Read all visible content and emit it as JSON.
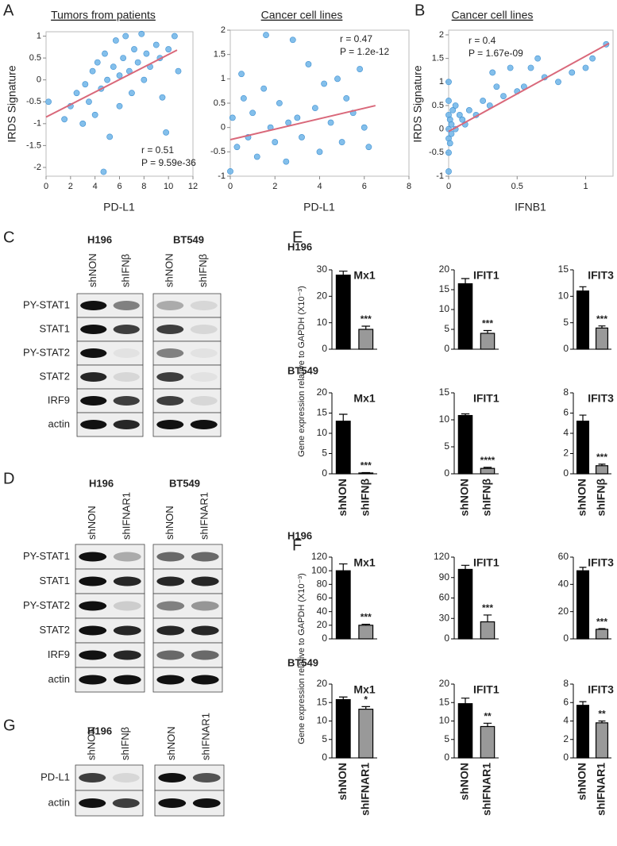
{
  "panel_letters": [
    "A",
    "B",
    "C",
    "D",
    "E",
    "F",
    "G"
  ],
  "bar_rows": [
    "H196",
    "BT549",
    "H196",
    "BT549"
  ],
  "bar_ylabel": "Gene expression relative to GAPDH (X10⁻³)",
  "blots": [
    {
      "groups": [
        {
          "cell_line": "H196",
          "lanes": [
            "shNON",
            "shIFNβ"
          ]
        },
        {
          "cell_line": "BT549",
          "lanes": [
            "shNON",
            "shIFNβ"
          ]
        }
      ],
      "proteins": [
        "PY-STAT1",
        "STAT1",
        "PY-STAT2",
        "STAT2",
        "IRF9",
        "actin"
      ]
    },
    {
      "groups": [
        {
          "cell_line": "H196",
          "lanes": [
            "shNON",
            "shIFNAR1"
          ]
        },
        {
          "cell_line": "BT549",
          "lanes": [
            "shNON",
            "shIFNAR1"
          ]
        }
      ],
      "proteins": [
        "PY-STAT1",
        "STAT1",
        "PY-STAT2",
        "STAT2",
        "IRF9",
        "actin"
      ]
    },
    {
      "groups": [
        {
          "cell_line": "H196",
          "lanes": [
            "shNON",
            "shIFNβ"
          ]
        },
        {
          "lanes": [
            "shNON",
            "shIFNAR1"
          ]
        }
      ],
      "proteins": [
        "PD-L1",
        "actin"
      ]
    }
  ],
  "chart_data": [
    {
      "type": "scatter",
      "title": "Tumors from patients",
      "xlabel": "PD-L1",
      "ylabel": "IRDS Signature",
      "annotations": [
        "r = 0.51",
        "P = 9.59e-36"
      ],
      "color": "#6db4e8",
      "x": [
        0.2,
        1.5,
        2,
        2.5,
        3,
        3.2,
        3.5,
        3.8,
        4,
        4.2,
        4.5,
        4.7,
        4.8,
        5,
        5.2,
        5.5,
        5.7,
        6,
        6,
        6.3,
        6.5,
        6.8,
        7,
        7.2,
        7.5,
        7.8,
        8,
        8.2,
        8.5,
        9,
        9.3,
        9.5,
        10,
        10.5,
        10.8,
        9.8
      ],
      "values": [
        -0.5,
        -0.9,
        -0.6,
        -0.3,
        -1.0,
        -0.1,
        -0.5,
        0.2,
        -0.8,
        0.4,
        -0.2,
        -2.1,
        0.6,
        0.0,
        -1.3,
        0.3,
        0.9,
        0.1,
        -0.6,
        0.5,
        1.0,
        0.2,
        -0.3,
        0.7,
        0.4,
        1.05,
        0.0,
        0.6,
        0.3,
        0.8,
        0.5,
        -0.4,
        0.7,
        1.0,
        0.2,
        -1.2
      ],
      "trend": {
        "color": "#d9687a",
        "x": [
          0,
          10.7
        ],
        "values": [
          -0.85,
          0.68
        ]
      },
      "xlim": [
        0,
        12
      ],
      "xticks": [
        0,
        2,
        4,
        6,
        8,
        10,
        12
      ],
      "ylim": [
        -2.2,
        1.1
      ],
      "yticks": [
        -2,
        -1.5,
        -1,
        -0.5,
        0,
        0.5,
        1
      ]
    },
    {
      "type": "scatter",
      "title": "Cancer cell lines",
      "xlabel": "PD-L1",
      "annotations": [
        "r = 0.47",
        "P = 1.2e-12"
      ],
      "color": "#6db4e8",
      "x": [
        0,
        0.1,
        0.3,
        0.5,
        0.8,
        1,
        1.2,
        1.5,
        1.8,
        2,
        2.2,
        2.5,
        2.8,
        3,
        3.2,
        3.5,
        3.8,
        4,
        4.2,
        4.5,
        4.8,
        5,
        5.2,
        5.5,
        5.8,
        6,
        6.2,
        1.6,
        0.6,
        2.6
      ],
      "values": [
        -0.9,
        0.2,
        -0.4,
        1.1,
        -0.2,
        0.3,
        -0.6,
        0.8,
        0.0,
        -0.3,
        0.5,
        -0.7,
        1.8,
        0.2,
        -0.2,
        1.3,
        0.4,
        -0.5,
        0.9,
        0.1,
        1.0,
        -0.3,
        0.6,
        0.3,
        1.2,
        0.0,
        -0.4,
        1.9,
        0.6,
        0.1
      ],
      "trend": {
        "color": "#d9687a",
        "x": [
          0,
          6.5
        ],
        "values": [
          -0.25,
          0.45
        ]
      },
      "xlim": [
        0,
        8
      ],
      "xticks": [
        0,
        2,
        4,
        6,
        8
      ],
      "ylim": [
        -1,
        2
      ],
      "yticks": [
        -1,
        -0.5,
        0,
        0.5,
        1,
        1.5,
        2
      ]
    },
    {
      "type": "scatter",
      "title": "Cancer cell lines",
      "xlabel": "IFNB1",
      "ylabel": "IRDS Signature",
      "annotations": [
        "r = 0.4",
        "P = 1.67e-09"
      ],
      "color": "#6db4e8",
      "x": [
        0,
        0,
        0,
        0,
        0,
        0,
        0,
        0.01,
        0.01,
        0.02,
        0.02,
        0.03,
        0.05,
        0.05,
        0.08,
        0.1,
        0.12,
        0.15,
        0.2,
        0.25,
        0.3,
        0.35,
        0.4,
        0.5,
        0.55,
        0.6,
        0.65,
        0.7,
        0.8,
        0.9,
        1.0,
        1.05,
        1.15,
        0.32,
        0.45
      ],
      "values": [
        -0.9,
        -0.5,
        -0.2,
        0,
        0.3,
        0.6,
        1.0,
        -0.3,
        0.2,
        0.1,
        -0.1,
        0.4,
        0,
        0.5,
        0.3,
        0.2,
        0.1,
        0.4,
        0.3,
        0.6,
        0.5,
        0.9,
        0.7,
        0.8,
        0.9,
        1.3,
        1.5,
        1.1,
        1.0,
        1.2,
        1.3,
        1.5,
        1.8,
        1.2,
        1.3
      ],
      "trend": {
        "color": "#d9687a",
        "x": [
          0,
          1.17
        ],
        "values": [
          -0.05,
          1.82
        ]
      },
      "xlim": [
        0,
        1.2
      ],
      "xticks": [
        0,
        0.5,
        1
      ],
      "ylim": [
        -1,
        2.1
      ],
      "yticks": [
        -1,
        -0.5,
        0,
        0.5,
        1,
        1.5,
        2
      ]
    },
    {
      "type": "bar",
      "title": "Mx1",
      "values": [
        28,
        7.5
      ],
      "errors": [
        1.5,
        1.2
      ],
      "colors": [
        "#000000",
        "#999999"
      ],
      "significance": "***",
      "ylim": [
        0,
        30
      ],
      "yticks": [
        0,
        10,
        20,
        30
      ]
    },
    {
      "type": "bar",
      "title": "IFIT1",
      "values": [
        16.5,
        4
      ],
      "errors": [
        1.3,
        0.7
      ],
      "colors": [
        "#000000",
        "#999999"
      ],
      "significance": "***",
      "ylim": [
        0,
        20
      ],
      "yticks": [
        0,
        5,
        10,
        15,
        20
      ]
    },
    {
      "type": "bar",
      "title": "IFIT3",
      "values": [
        11,
        4
      ],
      "errors": [
        0.8,
        0.4
      ],
      "colors": [
        "#000000",
        "#999999"
      ],
      "significance": "***",
      "ylim": [
        0,
        15
      ],
      "yticks": [
        0,
        5,
        10,
        15
      ]
    },
    {
      "type": "bar",
      "title": "Mx1",
      "categories": [
        "shNON",
        "shIFNβ"
      ],
      "values": [
        13,
        0.2
      ],
      "errors": [
        1.7,
        0.1
      ],
      "colors": [
        "#000000",
        "#999999"
      ],
      "significance": "***",
      "ylim": [
        0,
        20
      ],
      "yticks": [
        0,
        5,
        10,
        15,
        20
      ]
    },
    {
      "type": "bar",
      "title": "IFIT1",
      "categories": [
        "shNON",
        "shIFNβ"
      ],
      "values": [
        10.8,
        1
      ],
      "errors": [
        0.3,
        0.2
      ],
      "colors": [
        "#000000",
        "#999999"
      ],
      "significance": "****",
      "ylim": [
        0,
        15
      ],
      "yticks": [
        0,
        5,
        10,
        15
      ]
    },
    {
      "type": "bar",
      "title": "IFIT3",
      "categories": [
        "shNON",
        "shIFNβ"
      ],
      "values": [
        5.2,
        0.8
      ],
      "errors": [
        0.6,
        0.15
      ],
      "colors": [
        "#000000",
        "#999999"
      ],
      "significance": "***",
      "ylim": [
        0,
        8
      ],
      "yticks": [
        0,
        2,
        4,
        6,
        8
      ]
    },
    {
      "type": "bar",
      "title": "Mx1",
      "values": [
        100,
        20
      ],
      "errors": [
        10,
        1.5
      ],
      "colors": [
        "#000000",
        "#999999"
      ],
      "significance": "***",
      "ylim": [
        0,
        120
      ],
      "yticks": [
        0,
        20,
        40,
        60,
        80,
        100,
        120
      ]
    },
    {
      "type": "bar",
      "title": "IFIT1",
      "values": [
        102,
        25
      ],
      "errors": [
        6,
        10
      ],
      "colors": [
        "#000000",
        "#999999"
      ],
      "significance": "***",
      "ylim": [
        0,
        120
      ],
      "yticks": [
        0,
        30,
        60,
        90,
        120
      ]
    },
    {
      "type": "bar",
      "title": "IFIT3",
      "values": [
        50,
        7
      ],
      "errors": [
        2.5,
        0.5
      ],
      "colors": [
        "#000000",
        "#999999"
      ],
      "significance": "***",
      "ylim": [
        0,
        60
      ],
      "yticks": [
        0,
        20,
        40,
        60
      ]
    },
    {
      "type": "bar",
      "title": "Mx1",
      "categories": [
        "shNON",
        "shIFNAR1"
      ],
      "values": [
        15.8,
        13.2
      ],
      "errors": [
        0.7,
        0.7
      ],
      "colors": [
        "#000000",
        "#999999"
      ],
      "significance": "*",
      "ylim": [
        0,
        20
      ],
      "yticks": [
        0,
        5,
        10,
        15,
        20
      ]
    },
    {
      "type": "bar",
      "title": "IFIT1",
      "categories": [
        "shNON",
        "shIFNAR1"
      ],
      "values": [
        14.7,
        8.5
      ],
      "errors": [
        1.5,
        0.9
      ],
      "colors": [
        "#000000",
        "#999999"
      ],
      "significance": "**",
      "ylim": [
        0,
        20
      ],
      "yticks": [
        0,
        5,
        10,
        15,
        20
      ]
    },
    {
      "type": "bar",
      "title": "IFIT3",
      "categories": [
        "shNON",
        "shIFNAR1"
      ],
      "values": [
        5.7,
        3.8
      ],
      "errors": [
        0.4,
        0.2
      ],
      "colors": [
        "#000000",
        "#999999"
      ],
      "significance": "**",
      "ylim": [
        0,
        8
      ],
      "yticks": [
        0,
        2,
        4,
        6,
        8
      ]
    }
  ]
}
